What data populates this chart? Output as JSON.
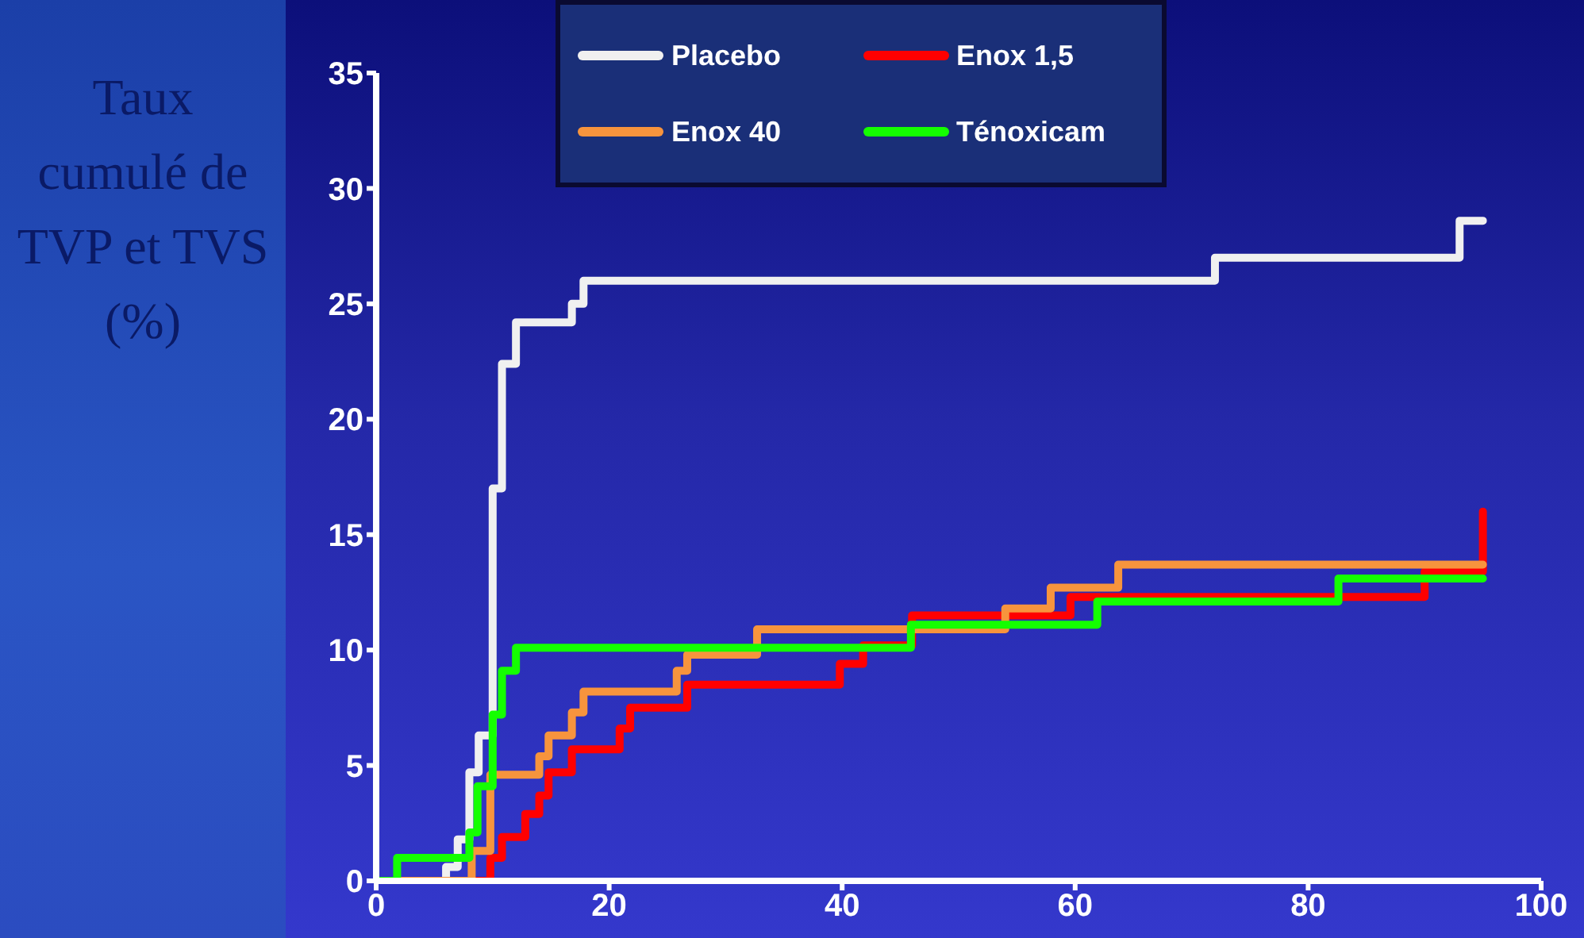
{
  "chart_data": {
    "type": "step",
    "ylabel": "Taux cumulé de TVP et TVS (%)",
    "xlim": [
      0,
      100
    ],
    "xticks": [
      0,
      20,
      40,
      60,
      80,
      100
    ],
    "ylim": [
      0,
      35
    ],
    "yticks": [
      0,
      5,
      10,
      15,
      20,
      25,
      30,
      35
    ],
    "legend": "top",
    "marker": "none",
    "line_style": "solid",
    "series": [
      {
        "name": "Placebo",
        "color": "#f0f0f0",
        "x": [
          0,
          6,
          7,
          8,
          8.8,
          10,
          10.8,
          12,
          16.8,
          17.8,
          72,
          93,
          95
        ],
        "values": [
          0,
          0.6,
          1.8,
          4.7,
          6.3,
          17,
          22.4,
          24.2,
          25,
          26,
          27,
          28.6,
          28.6
        ]
      },
      {
        "name": "Enox 1,5",
        "color": "#ff0000",
        "x": [
          0,
          9.8,
          10.8,
          12.8,
          14,
          14.8,
          16.8,
          20.9,
          21.8,
          26.7,
          39.8,
          41.8,
          46,
          59.6,
          90,
          95
        ],
        "values": [
          0,
          1,
          1.9,
          2.9,
          3.7,
          4.7,
          5.7,
          6.6,
          7.5,
          8.5,
          9.4,
          10.2,
          11.5,
          12.3,
          13.4,
          16
        ]
      },
      {
        "name": "Enox 40",
        "color": "#f7943d",
        "x": [
          0,
          8.2,
          9.8,
          14,
          14.8,
          16.8,
          17.8,
          25.8,
          26.7,
          32.7,
          54,
          57.9,
          63.7,
          95
        ],
        "values": [
          0,
          1.3,
          4.6,
          5.4,
          6.3,
          7.3,
          8.2,
          9.1,
          9.8,
          10.9,
          11.8,
          12.7,
          13.7,
          13.7
        ]
      },
      {
        "name": "Ténoxicam",
        "color": "#14ff00",
        "x": [
          0,
          1.8,
          8,
          8.7,
          10,
          10.8,
          12,
          45.9,
          61.9,
          82.6,
          95
        ],
        "values": [
          0,
          1,
          2.1,
          4.1,
          7.2,
          9.1,
          10.1,
          11.1,
          12.1,
          13.1,
          13.1
        ]
      }
    ]
  }
}
